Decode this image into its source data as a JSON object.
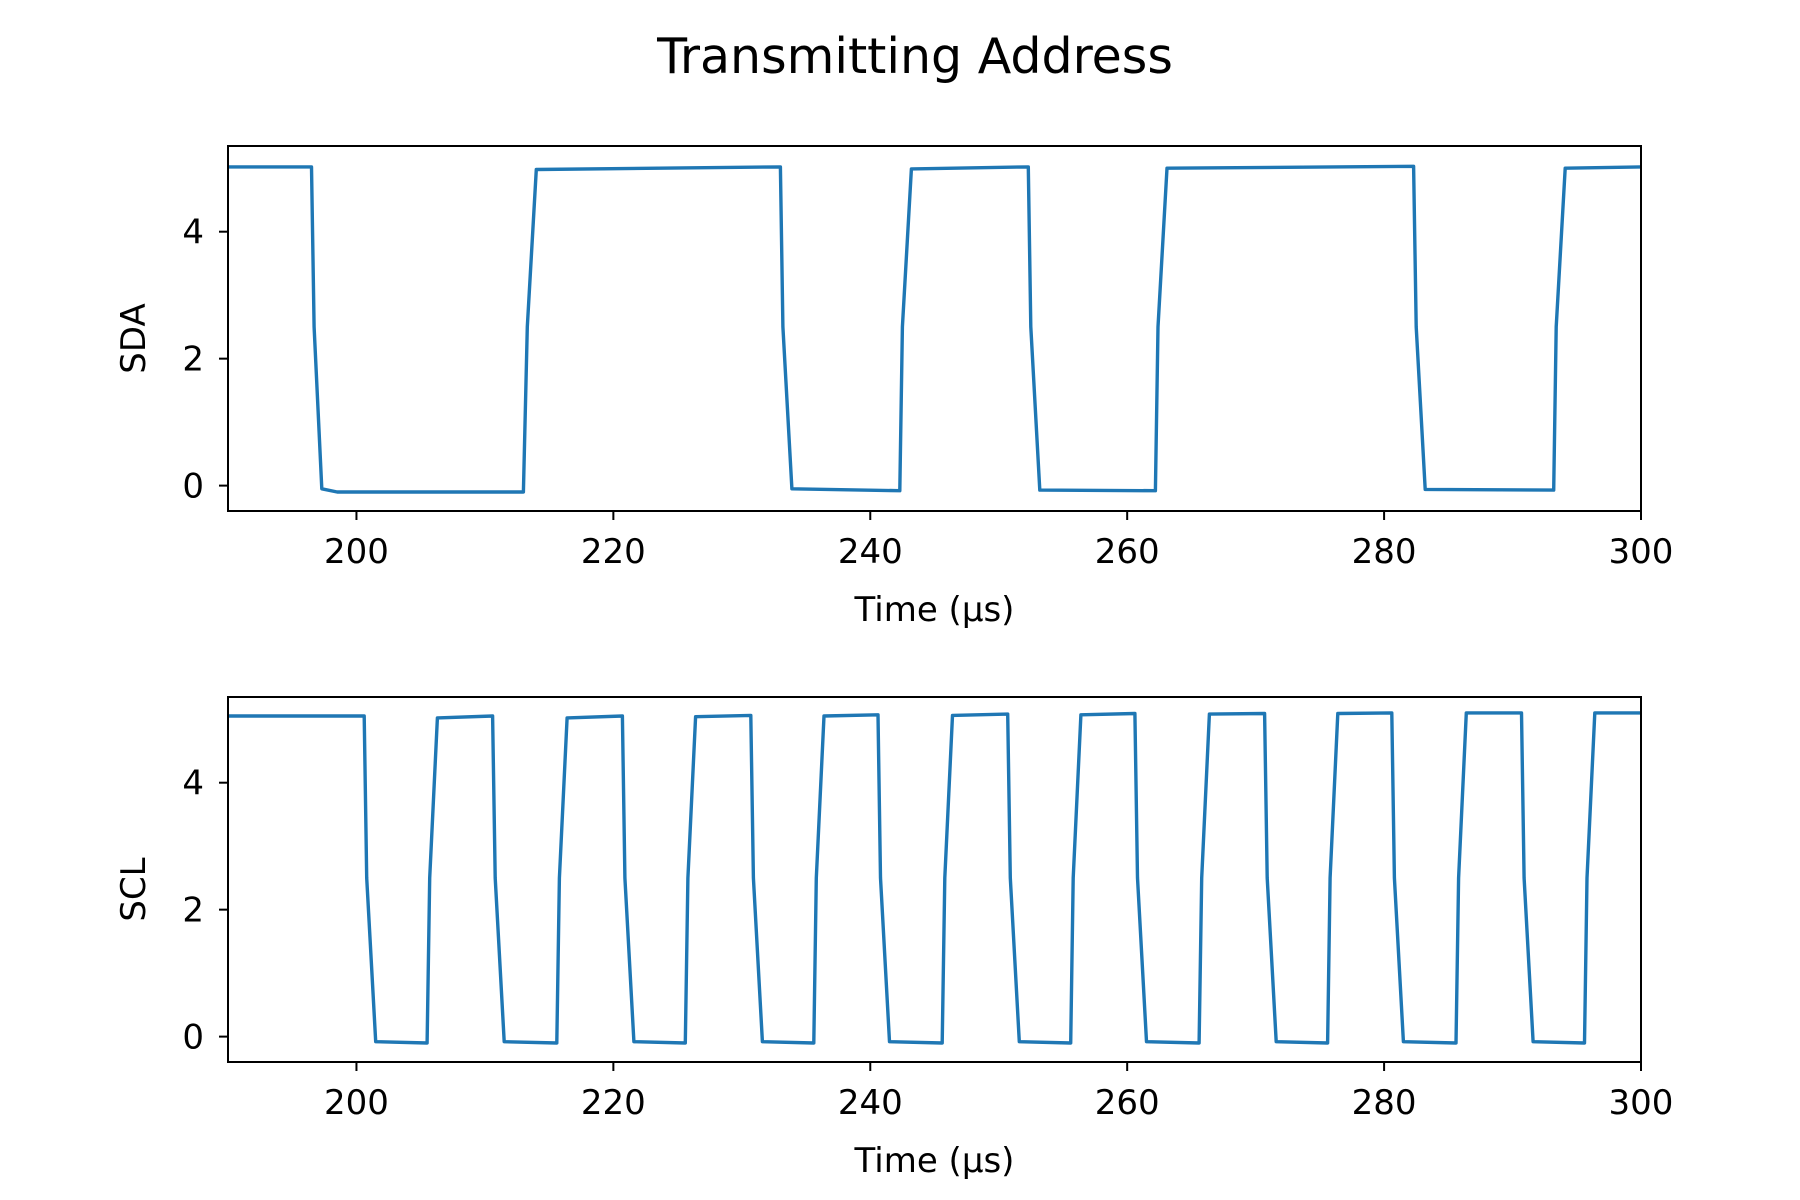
{
  "title": "Transmitting Address",
  "line_color": "#1f77b4",
  "chart_data": [
    {
      "type": "line",
      "panel": "top",
      "xlabel": "Time (µs)",
      "ylabel": "SDA",
      "xlim": [
        190,
        300
      ],
      "ylim": [
        -0.4,
        5.35
      ],
      "xticks": [
        200,
        220,
        240,
        260,
        280,
        300
      ],
      "yticks": [
        0,
        2,
        4
      ],
      "grid": false,
      "series": [
        {
          "x": [
            190,
            196.5,
            196.7,
            197.3,
            198.5,
            213.0,
            213.3,
            214.0,
            233.0,
            233.2,
            233.9,
            242.3,
            242.5,
            243.2,
            252.3,
            252.5,
            253.2,
            262.2,
            262.4,
            263.1,
            282.3,
            282.5,
            283.2,
            293.2,
            293.4,
            294.1,
            300
          ],
          "y": [
            5.02,
            5.02,
            2.5,
            -0.05,
            -0.1,
            -0.1,
            2.5,
            4.98,
            5.02,
            2.5,
            -0.05,
            -0.08,
            2.5,
            4.99,
            5.02,
            2.5,
            -0.07,
            -0.08,
            2.5,
            5.0,
            5.03,
            2.5,
            -0.06,
            -0.07,
            2.5,
            5.0,
            5.02
          ]
        }
      ]
    },
    {
      "type": "line",
      "panel": "bottom",
      "xlabel": "Time (µs)",
      "ylabel": "SCL",
      "xlim": [
        190,
        300
      ],
      "ylim": [
        -0.4,
        5.35
      ],
      "xticks": [
        200,
        220,
        240,
        260,
        280,
        300
      ],
      "yticks": [
        0,
        2,
        4
      ],
      "grid": false,
      "series": [
        {
          "x": [
            190,
            200.6,
            200.8,
            201.5,
            205.5,
            205.7,
            206.3,
            210.6,
            210.8,
            211.5,
            215.6,
            215.8,
            216.4,
            220.7,
            220.9,
            221.6,
            225.6,
            225.8,
            226.4,
            230.7,
            230.9,
            231.6,
            235.6,
            235.8,
            236.4,
            240.6,
            240.8,
            241.5,
            245.6,
            245.8,
            246.4,
            250.7,
            250.9,
            251.6,
            255.6,
            255.8,
            256.4,
            260.6,
            260.8,
            261.5,
            265.6,
            265.8,
            266.4,
            270.7,
            270.9,
            271.6,
            275.6,
            275.8,
            276.4,
            280.6,
            280.8,
            281.5,
            285.6,
            285.8,
            286.4,
            290.7,
            290.9,
            291.6,
            295.6,
            295.8,
            296.4,
            300
          ],
          "y": [
            5.05,
            5.05,
            2.5,
            -0.08,
            -0.1,
            2.5,
            5.02,
            5.05,
            2.5,
            -0.08,
            -0.1,
            2.5,
            5.02,
            5.05,
            2.5,
            -0.08,
            -0.1,
            2.5,
            5.04,
            5.06,
            2.5,
            -0.08,
            -0.1,
            2.5,
            5.05,
            5.07,
            2.5,
            -0.08,
            -0.1,
            2.5,
            5.06,
            5.08,
            2.5,
            -0.08,
            -0.1,
            2.5,
            5.07,
            5.09,
            2.5,
            -0.08,
            -0.1,
            2.5,
            5.08,
            5.09,
            2.5,
            -0.08,
            -0.1,
            2.5,
            5.09,
            5.1,
            2.5,
            -0.08,
            -0.1,
            2.5,
            5.1,
            5.1,
            2.5,
            -0.08,
            -0.1,
            2.5,
            5.1,
            5.1
          ]
        }
      ]
    }
  ]
}
